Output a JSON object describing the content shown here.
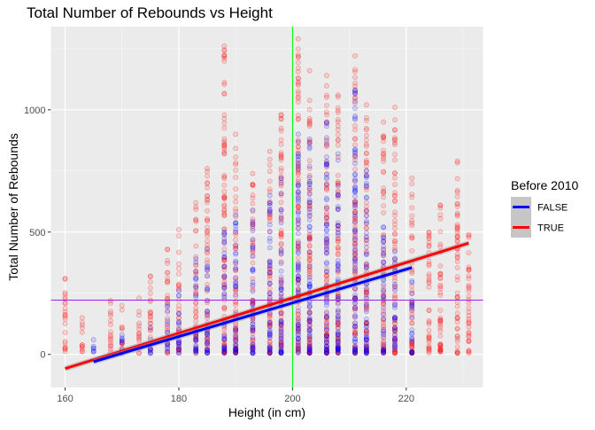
{
  "chart_data": {
    "type": "scatter",
    "title": "Total Number of Rebounds vs Height",
    "xlabel": "Height (in cm)",
    "ylabel": "Total Number of Rebounds",
    "xlim": [
      157.5,
      233.5
    ],
    "ylim": [
      -135,
      1340
    ],
    "x_ticks": [
      160,
      180,
      200,
      220
    ],
    "y_ticks": [
      0,
      500,
      1000
    ],
    "x_tick_labels": [
      "160",
      "180",
      "200",
      "220"
    ],
    "y_tick_labels": [
      "0",
      "500",
      "1000"
    ],
    "grid": true,
    "legend": {
      "title": "Before 2010",
      "position": "right",
      "entries": [
        {
          "label": "FALSE",
          "color": "#0000ff"
        },
        {
          "label": "TRUE",
          "color": "#ff0000"
        }
      ]
    },
    "reference_lines": {
      "vertical_x": 200,
      "vertical_color": "#00ff00",
      "horizontal_y": 222,
      "horizontal_color": "#a020f0"
    },
    "series": [
      {
        "name": "FALSE",
        "color": "#0000ff",
        "regression": {
          "x": [
            165,
            221
          ],
          "y": [
            -30,
            355
          ]
        },
        "columns": [
          {
            "x": 165,
            "ymax": 60
          },
          {
            "x": 170,
            "ymax": 80
          },
          {
            "x": 175,
            "ymax": 110
          },
          {
            "x": 178,
            "ymax": 200
          },
          {
            "x": 180,
            "ymax": 260
          },
          {
            "x": 183,
            "ymax": 390
          },
          {
            "x": 185,
            "ymax": 430
          },
          {
            "x": 188,
            "ymax": 500
          },
          {
            "x": 190,
            "ymax": 570
          },
          {
            "x": 193,
            "ymax": 590
          },
          {
            "x": 196,
            "ymax": 650
          },
          {
            "x": 198,
            "ymax": 720
          },
          {
            "x": 201,
            "ymax": 900
          },
          {
            "x": 203,
            "ymax": 880
          },
          {
            "x": 206,
            "ymax": 950
          },
          {
            "x": 208,
            "ymax": 820
          },
          {
            "x": 211,
            "ymax": 1080
          },
          {
            "x": 213,
            "ymax": 750
          },
          {
            "x": 216,
            "ymax": 520
          },
          {
            "x": 218,
            "ymax": 420
          },
          {
            "x": 221,
            "ymax": 300
          }
        ]
      },
      {
        "name": "TRUE",
        "color": "#ff0000",
        "regression": {
          "x": [
            160,
            231
          ],
          "y": [
            -58,
            455
          ]
        },
        "columns": [
          {
            "x": 160,
            "ymax": 310
          },
          {
            "x": 163,
            "ymax": 150
          },
          {
            "x": 168,
            "ymax": 220
          },
          {
            "x": 170,
            "ymax": 200
          },
          {
            "x": 173,
            "ymax": 230
          },
          {
            "x": 175,
            "ymax": 320
          },
          {
            "x": 178,
            "ymax": 430
          },
          {
            "x": 180,
            "ymax": 510
          },
          {
            "x": 183,
            "ymax": 620
          },
          {
            "x": 185,
            "ymax": 760
          },
          {
            "x": 188,
            "ymax": 1260
          },
          {
            "x": 190,
            "ymax": 900
          },
          {
            "x": 193,
            "ymax": 740
          },
          {
            "x": 196,
            "ymax": 830
          },
          {
            "x": 198,
            "ymax": 980
          },
          {
            "x": 201,
            "ymax": 1290
          },
          {
            "x": 203,
            "ymax": 1160
          },
          {
            "x": 206,
            "ymax": 1140
          },
          {
            "x": 208,
            "ymax": 1060
          },
          {
            "x": 211,
            "ymax": 1220
          },
          {
            "x": 213,
            "ymax": 1020
          },
          {
            "x": 216,
            "ymax": 950
          },
          {
            "x": 218,
            "ymax": 1010
          },
          {
            "x": 221,
            "ymax": 720
          },
          {
            "x": 224,
            "ymax": 500
          },
          {
            "x": 226,
            "ymax": 610
          },
          {
            "x": 229,
            "ymax": 790
          },
          {
            "x": 231,
            "ymax": 490
          }
        ]
      }
    ]
  }
}
